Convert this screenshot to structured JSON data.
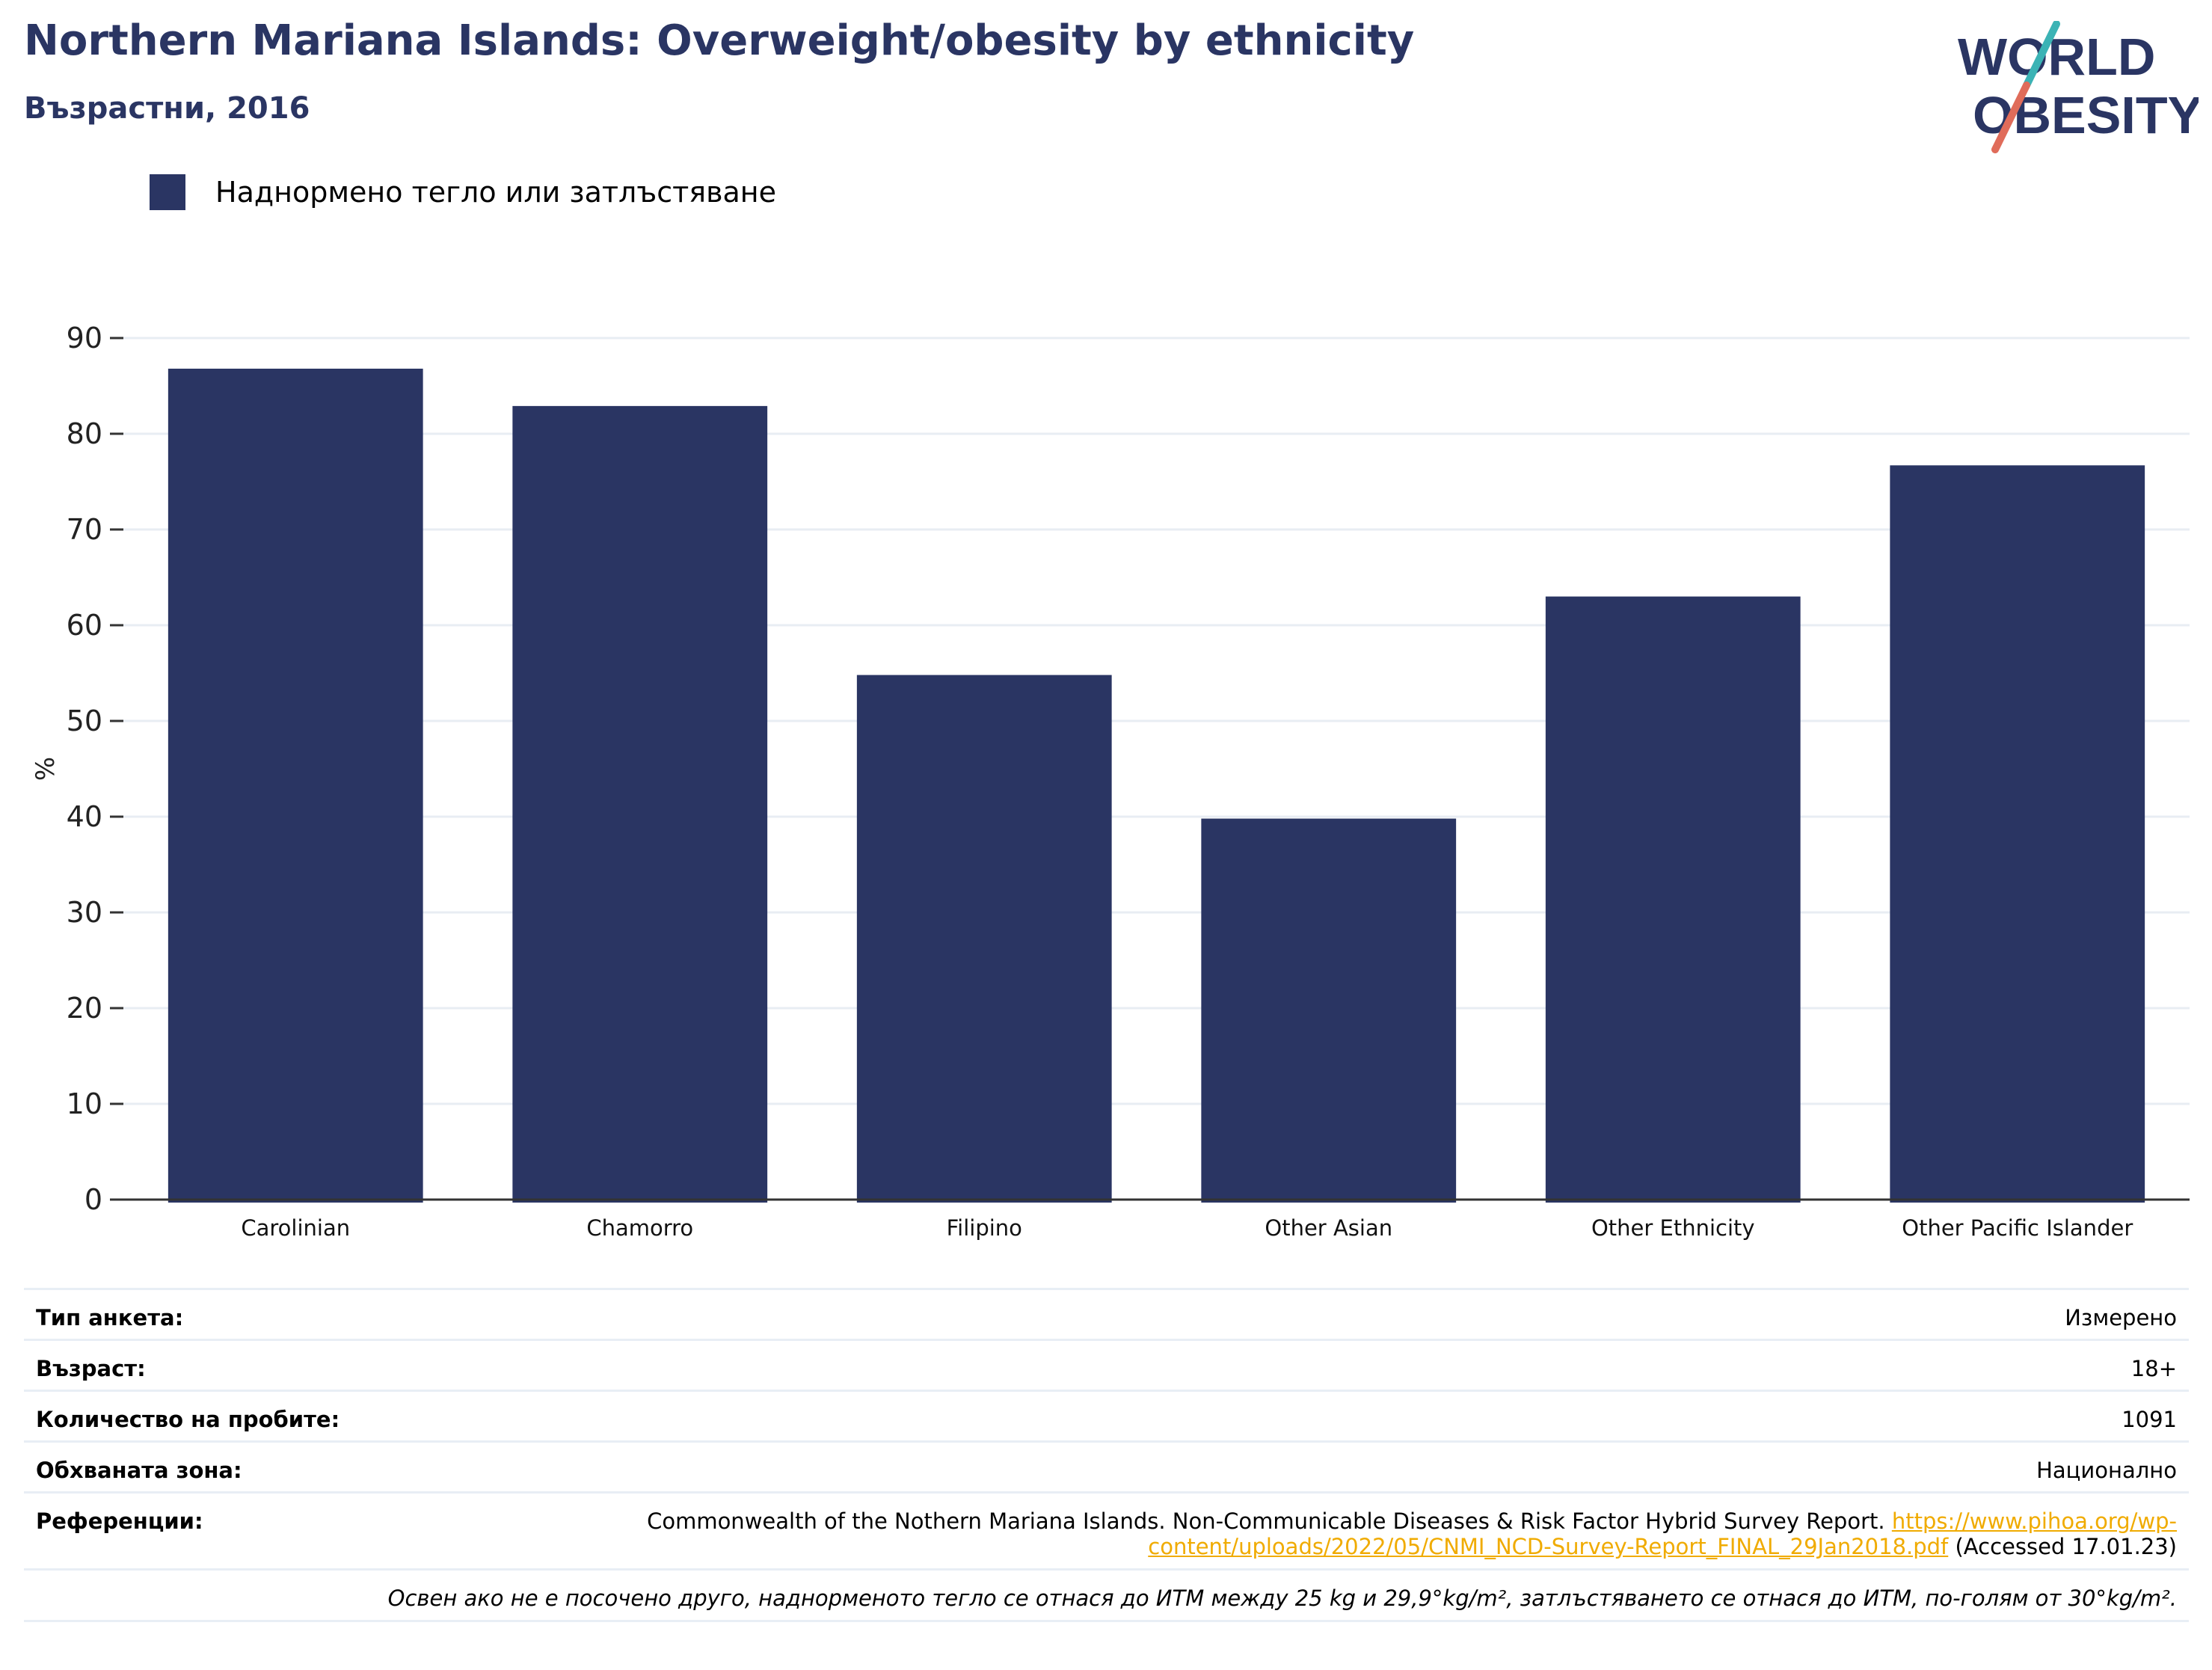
{
  "title": "Northern Mariana Islands: Overweight/obesity by ethnicity",
  "subtitle": "Възрастни, 2016",
  "logo": {
    "line1": "WORLD",
    "line2": "OBESITY"
  },
  "legend": {
    "label": "Наднормено тегло или затлъстяване"
  },
  "colors": {
    "bar": "#2a3563",
    "accent": "#f0ab00",
    "logo_teal": "#3bb3b5",
    "logo_coral": "#e06c5a"
  },
  "chart_data": {
    "type": "bar",
    "categories": [
      "Carolinian",
      "Chamorro",
      "Filipino",
      "Other Asian",
      "Other Ethnicity",
      "Other Pacific Islander"
    ],
    "series": [
      {
        "name": "Наднормено тегло или затлъстяване",
        "values": [
          86.8,
          82.9,
          54.8,
          39.8,
          63.0,
          76.7
        ]
      }
    ],
    "ylabel": "%",
    "ylim": [
      0,
      90
    ],
    "yticks": [
      0,
      10,
      20,
      30,
      40,
      50,
      60,
      70,
      80,
      90
    ],
    "grid": true,
    "legend_position": "top-left"
  },
  "info": {
    "survey_type_label": "Тип анкета:",
    "survey_type": "Измерено",
    "age_label": "Възраст:",
    "age": "18+",
    "sample_label": "Количество на пробите:",
    "sample": "1091",
    "area_label": "Обхваната зона:",
    "area": "Национално",
    "references_label": "Референции:",
    "reference_text": "Commonwealth of the Nothern Mariana Islands. Non-Communicable Diseases & Risk Factor Hybrid Survey Report.",
    "reference_link_1": "https://www.pihoa.org/wp-",
    "reference_link_2": "content/uploads/2022/05/CNMI_NCD-Survey-Report_FINAL_29Jan2018.pdf",
    "reference_accessed": "(Accessed 17.01.23)",
    "note": "Освен ако не е посочено друго, наднорменото тегло се отнася до ИТМ между 25 kg и 29,9°kg/m², затлъстяването се отнася до ИТМ, по-голям от 30°kg/m²."
  }
}
